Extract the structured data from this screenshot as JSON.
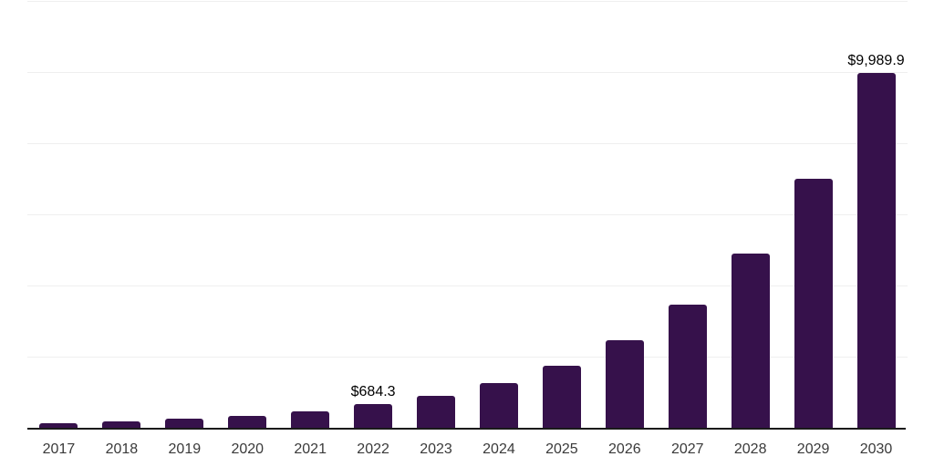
{
  "chart_data": {
    "type": "bar",
    "title": "",
    "xlabel": "",
    "ylabel": "",
    "categories": [
      "2017",
      "2018",
      "2019",
      "2020",
      "2021",
      "2022",
      "2023",
      "2024",
      "2025",
      "2026",
      "2027",
      "2028",
      "2029",
      "2030"
    ],
    "values": [
      145,
      200,
      275,
      345,
      480,
      684.3,
      920,
      1260,
      1750,
      2480,
      3480,
      4920,
      7015,
      9989.9
    ],
    "data_labels": [
      {
        "category": "2022",
        "text": "$684.3"
      },
      {
        "category": "2030",
        "text": "$9,989.9"
      }
    ],
    "ylim": [
      0,
      12000
    ],
    "gridline_interval": 2000,
    "grid": "horizontal-only",
    "legend": "none",
    "y_axis_tick_labels_visible": false,
    "colors": {
      "bar": "#36114B",
      "axis_line": "#1a1a1a",
      "gridline": "#efefef",
      "data_label": "#000000",
      "tick_label": "#3a3a3a",
      "background": "#ffffff"
    }
  }
}
